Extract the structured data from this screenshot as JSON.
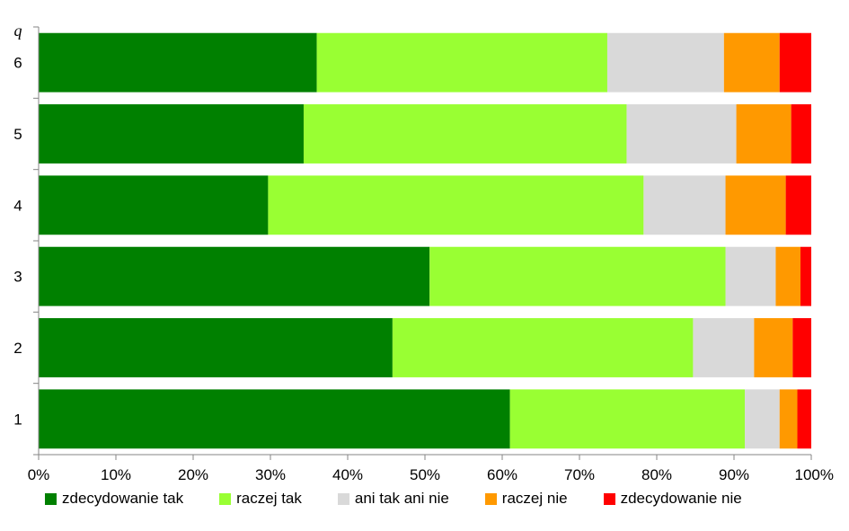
{
  "chart_data": {
    "type": "bar",
    "orientation": "horizontal",
    "stacked": "percent",
    "ylabel": "q",
    "categories": [
      "1",
      "2",
      "3",
      "4",
      "5",
      "6"
    ],
    "x_ticks": [
      "0%",
      "10%",
      "20%",
      "30%",
      "40%",
      "50%",
      "60%",
      "70%",
      "80%",
      "90%",
      "100%"
    ],
    "xlim": [
      0,
      100
    ],
    "grid": false,
    "legend_position": "bottom",
    "series": [
      {
        "name": "zdecydowanie tak",
        "color": "#008000",
        "values": [
          61.0,
          45.8,
          50.6,
          29.7,
          34.3,
          36.0
        ]
      },
      {
        "name": "raczej tak",
        "color": "#99ff33",
        "values": [
          30.4,
          38.9,
          38.3,
          48.6,
          41.8,
          37.6
        ]
      },
      {
        "name": "ani tak ani nie",
        "color": "#d9d9d9",
        "values": [
          4.5,
          7.9,
          6.5,
          10.6,
          14.2,
          15.1
        ]
      },
      {
        "name": "raczej nie",
        "color": "#ff9900",
        "values": [
          2.3,
          5.0,
          3.2,
          7.8,
          7.1,
          7.2
        ]
      },
      {
        "name": "zdecydowanie nie",
        "color": "#ff0000",
        "values": [
          1.8,
          2.4,
          1.4,
          3.3,
          2.6,
          4.1
        ]
      }
    ]
  }
}
